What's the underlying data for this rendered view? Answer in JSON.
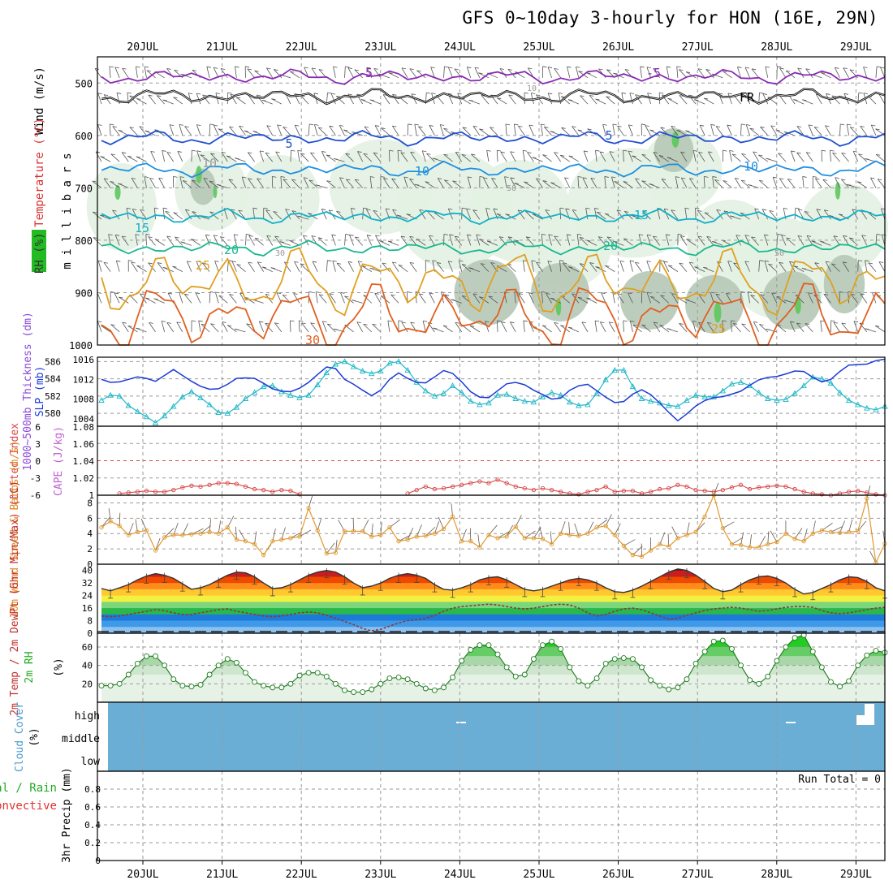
{
  "title": "GFS 0~10day 3-hourly for HON (16E, 29N)",
  "colors": {
    "frame": "#000000",
    "grid": "#9a9a9a",
    "temp_contours": {
      "m5": "#8a2ab4",
      "fr": "#000000",
      "p5": "#1f4fd2",
      "p10": "#1f8fe0",
      "p15": "#10b0c8",
      "p20": "#18b890",
      "p25": "#e0a020",
      "p30": "#e06020"
    },
    "rh_fill_light": "#e4f1e4",
    "rh_fill_mid": "#b6c8b6",
    "rh_fill_green": "#5cc85c",
    "slp": "#1a3ad8",
    "thickness": "#20b8c8",
    "lifted_index": "#d84848",
    "wind10m": "#e09a30",
    "temp_bands": [
      "#8b0000",
      "#c81e1e",
      "#ee4a00",
      "#ff8c1a",
      "#ffc830",
      "#f4f040",
      "#7cd67c",
      "#2ab84a",
      "#1e7ad8",
      "#3e9ae8",
      "#8cc0f0"
    ],
    "temp2m_line": "#333333",
    "dewpt_line": "#8a3a3a",
    "rh2m": "#1a7a1a",
    "rh2m_fill": [
      "#e6f2e6",
      "#cde6cd",
      "#a8d8a8",
      "#66cc66",
      "#22cc22"
    ],
    "cloud": "#6aaed6",
    "precip_total": "#22aa22",
    "precip_conv": "#e03030"
  },
  "chart_data": [
    {
      "panel": "pressure-time cross-section",
      "type": "heatmap",
      "ylabel": "m i l l i b a r s",
      "side_labels": [
        "Wind (m/s)",
        "Temperature (°C)",
        "RH (%)"
      ],
      "y_ticks": [
        500,
        600,
        700,
        800,
        900,
        1000
      ],
      "ylim": [
        1000,
        450
      ],
      "x_ticks_top": [
        "20JUL",
        "21JUL",
        "22JUL",
        "23JUL",
        "24JUL",
        "25JUL",
        "26JUL",
        "27JUL",
        "28JUL",
        "29JUL"
      ],
      "contour_labels": [
        "-5",
        "-5",
        "FR",
        "5",
        "5",
        "10",
        "10",
        "10",
        "15",
        "15",
        "20",
        "20",
        "25",
        "25",
        "30",
        "50",
        "50",
        "30",
        "10"
      ],
      "temperature_levels": [
        {
          "label": "-5",
          "mb": 488
        },
        {
          "label": "FR",
          "mb": 525
        },
        {
          "label": "5",
          "mb": 605
        },
        {
          "label": "10",
          "mb": 665
        },
        {
          "label": "15",
          "mb": 755
        },
        {
          "label": "20",
          "mb": 815
        },
        {
          "label": "25",
          "mb": 880
        },
        {
          "label": "30",
          "mb": 945
        }
      ]
    },
    {
      "panel": "SLP and 1000-500mb thickness",
      "type": "line",
      "ylabel_left": "1000~500mb Thickness (dm)",
      "ylabel_right": "SLP (mb)",
      "y_ticks_thickness": [
        580,
        582,
        584,
        586
      ],
      "y_ticks_slp": [
        1004,
        1008,
        1012,
        1016
      ],
      "series": [
        {
          "name": "SLP (mb)",
          "ylim": [
            1002.5,
            1016.5
          ],
          "values": [
            1012,
            1011.4,
            1011.5,
            1012,
            1012.5,
            1012.2,
            1011.6,
            1012.8,
            1014,
            1012.8,
            1011.6,
            1010.6,
            1010,
            1010.1,
            1011,
            1012.2,
            1012.3,
            1012.2,
            1011.2,
            1010.1,
            1009.6,
            1009.5,
            1010.2,
            1011.4,
            1013,
            1014.5,
            1014.2,
            1012,
            1011,
            1009.8,
            1008.7,
            1009.8,
            1012,
            1013.3,
            1012.2,
            1011.4,
            1011.3,
            1012.5,
            1013.8,
            1013.2,
            1011.5,
            1009.5,
            1008.4,
            1008.3,
            1009.7,
            1011.1,
            1011.4,
            1010.9,
            1009.8,
            1008.9,
            1008,
            1008.2,
            1009.8,
            1010.7,
            1011,
            1009.7,
            1008.4,
            1007.3,
            1007.5,
            1009,
            1009.9,
            1008.9,
            1007.2,
            1005.3,
            1003.6,
            1005,
            1006.6,
            1007.7,
            1008.3,
            1008.5,
            1009,
            1009.6,
            1010.8,
            1011.9,
            1012.4,
            1012.6,
            1013.1,
            1013.7,
            1013.6,
            1012.4,
            1011.5,
            1012,
            1013.6,
            1014.9,
            1015,
            1015.1,
            1015.8,
            1016.1
          ]
        },
        {
          "name": "1000-500mb Thickness (dm)",
          "ylim": [
            578.5,
            586.5
          ],
          "values": [
            581.5,
            582.1,
            582,
            580.9,
            580.2,
            579.6,
            578.9,
            579.7,
            580.8,
            581.9,
            582.5,
            581.8,
            581,
            580.1,
            580,
            580.7,
            581.7,
            582.4,
            583.1,
            583.2,
            582.5,
            582.1,
            581.8,
            582.1,
            583.3,
            584.7,
            585.7,
            586,
            585.4,
            584.9,
            584.6,
            584.9,
            585.8,
            586,
            585,
            583.6,
            582.6,
            582,
            582.3,
            583.2,
            582.4,
            581.4,
            581,
            581.2,
            582.1,
            582.2,
            581.7,
            581.4,
            581.3,
            581.9,
            582.4,
            582.1,
            581.3,
            580.9,
            581,
            582.3,
            583.9,
            585,
            585,
            583.1,
            581.7,
            581.4,
            581.2,
            580.9,
            580.8,
            581.5,
            582.1,
            581.9,
            581.9,
            582.6,
            583.4,
            583.6,
            583.2,
            582.4,
            581.7,
            581.5,
            581.6,
            582.3,
            583.2,
            584.2,
            584,
            583.5,
            582.4,
            581.5,
            581,
            580.6,
            580.4,
            580.8
          ]
        }
      ]
    },
    {
      "panel": "Lifted Index and CAPE",
      "type": "line",
      "ylabel_left": "Lifted Index",
      "ylabel_right": "CAPE (J/kg)",
      "y_ticks_li": [
        "-6",
        "-3",
        "0",
        "3",
        "6"
      ],
      "y_ticks_cape": [
        "1",
        "1.02",
        "1.04",
        "1.06",
        "1.08"
      ],
      "reference_line": 1.04,
      "series": [
        {
          "name": "Lifted Index",
          "ylim": [
            1.0,
            1.08
          ],
          "values": [
            null,
            null,
            1.002,
            1.003,
            1.004,
            1.005,
            1.004,
            1.004,
            1.006,
            1.009,
            1.011,
            1.01,
            1.012,
            1.014,
            1.014,
            1.013,
            1.01,
            1.007,
            1.006,
            1.004,
            1.006,
            1.005,
            1.001,
            null,
            null,
            null,
            null,
            null,
            null,
            null,
            null,
            null,
            null,
            null,
            1.002,
            1.006,
            1.01,
            1.007,
            1.008,
            1.01,
            1.012,
            1.014,
            1.016,
            1.014,
            1.018,
            1.014,
            1.01,
            1.008,
            1.006,
            1.008,
            1.006,
            1.004,
            1.002,
            1.001,
            1.004,
            1.006,
            1.01,
            1.004,
            1.005,
            1.005,
            1.002,
            1.004,
            1.007,
            1.008,
            1.012,
            1.01,
            1.006,
            1.005,
            1.004,
            1.006,
            1.009,
            1.012,
            1.007,
            1.009,
            1.01,
            1.011,
            1.01,
            1.007,
            1.004,
            1.002,
            1.001,
            1.0,
            1.002,
            1.004,
            1.005,
            1.003,
            1.001,
            1.0
          ]
        }
      ]
    },
    {
      "panel": "10m Wind Speed & Barbs",
      "type": "line",
      "ylabel": "10m Wind Speed & Barbs (m/s)",
      "y_ticks": [
        0,
        2,
        4,
        6,
        8
      ],
      "ylim": [
        0,
        9
      ],
      "series": [
        {
          "name": "10m Wind Speed (m/s)",
          "values": [
            4.8,
            5.6,
            5,
            3.8,
            4.2,
            4.4,
            1.8,
            3.5,
            3.8,
            3.8,
            3.9,
            4,
            4.2,
            4,
            4.8,
            3.2,
            3,
            2.6,
            1.2,
            3,
            3.2,
            3.4,
            3.6,
            7.3,
            4.4,
            1.4,
            1.5,
            4.3,
            4.3,
            4.3,
            3.6,
            3.8,
            4.8,
            3,
            3.2,
            3.6,
            3.7,
            4,
            4.6,
            6.2,
            3,
            3,
            2.2,
            3.8,
            3.4,
            3.6,
            4.9,
            3.4,
            3.4,
            3.3,
            2.6,
            4,
            3.8,
            3.7,
            4,
            4.8,
            5,
            3.8,
            2.4,
            1.2,
            1,
            1.8,
            2.6,
            2.3,
            3.4,
            3.8,
            4.2,
            6.2,
            9,
            4.7,
            2.6,
            2.5,
            2.2,
            2.2,
            2.6,
            2.9,
            4,
            3.3,
            3,
            4,
            4.4,
            4.2,
            4.1,
            4.2,
            4.3,
            8.6,
            0.2,
            2.7
          ]
        }
      ]
    },
    {
      "panel": "2m Temp and DewPt",
      "type": "area",
      "ylabel": "2m Temp / 2m DewPt (6hr Min/Max) (°C)",
      "y_ticks": [
        "0",
        "8",
        "16",
        "24",
        "32",
        "40"
      ],
      "ylim": [
        0,
        44
      ],
      "series": [
        {
          "name": "2m Temp",
          "values": [
            28.5,
            27,
            29,
            31,
            34,
            36.5,
            38,
            37,
            35,
            31.5,
            28,
            29,
            31,
            34,
            37,
            39,
            38.5,
            36,
            32,
            28.5,
            29,
            31,
            34,
            37,
            39,
            40,
            39,
            36,
            32,
            29,
            30,
            32,
            35,
            37,
            38,
            37,
            35,
            31,
            28,
            27.5,
            29,
            31,
            34,
            35.5,
            36,
            34,
            31,
            28,
            27,
            28,
            30,
            32,
            34,
            35,
            34,
            32,
            29,
            26.5,
            26,
            27.5,
            30,
            33,
            36,
            39,
            41,
            40,
            37,
            33,
            28.5,
            26.5,
            27.5,
            31,
            34,
            36,
            36.5,
            35,
            32,
            28,
            25,
            26,
            28.5,
            31,
            34,
            36,
            35.5,
            33,
            29,
            27
          ]
        },
        {
          "name": "2m DewPt",
          "values": [
            11,
            10.5,
            11,
            12,
            13,
            14,
            15,
            14.5,
            13,
            12,
            12,
            13,
            14,
            15,
            15.5,
            14,
            13,
            12,
            11,
            10.5,
            11,
            12,
            13,
            13.5,
            13,
            11.5,
            9.5,
            7.5,
            5.5,
            3,
            1.5,
            2.5,
            4.5,
            6.5,
            8,
            8.5,
            9.5,
            11.5,
            14,
            16,
            17,
            17.5,
            18,
            18.5,
            18,
            17,
            16,
            15.5,
            16,
            17,
            18,
            18.5,
            18,
            16,
            13,
            11,
            12,
            14,
            15.5,
            16,
            15,
            13,
            11,
            9,
            9.5,
            11.5,
            13,
            14.5,
            15.5,
            16,
            16.5,
            16,
            15,
            14,
            14.5,
            15.5,
            16.5,
            17,
            17,
            16.5,
            14.5,
            13,
            12.5,
            13,
            14,
            15,
            16,
            16.5
          ]
        }
      ]
    },
    {
      "panel": "2m RH",
      "type": "area",
      "ylabel": "2m RH (%)",
      "y_ticks": [
        20,
        40,
        60
      ],
      "ylim": [
        0,
        75
      ],
      "series": [
        {
          "name": "2m RH (%)",
          "values": [
            18,
            18,
            20,
            30,
            42,
            50,
            50,
            40,
            25,
            18,
            17,
            19,
            30,
            40,
            47,
            43,
            32,
            22,
            18,
            16,
            16,
            20,
            29,
            32,
            32,
            28,
            20,
            13,
            11,
            11,
            14,
            20,
            26,
            27,
            25,
            20,
            15,
            13,
            16,
            27,
            45,
            57,
            62,
            62,
            52,
            38,
            28,
            30,
            47,
            62,
            66,
            58,
            38,
            23,
            18,
            26,
            42,
            47,
            48,
            47,
            38,
            24,
            18,
            14,
            16,
            25,
            42,
            55,
            66,
            67,
            58,
            40,
            24,
            20,
            28,
            45,
            60,
            70,
            73,
            55,
            38,
            22,
            17,
            23,
            40,
            51,
            56,
            54
          ]
        }
      ]
    },
    {
      "panel": "Cloud Cover",
      "type": "heatmap",
      "ylabel": "Cloud Cover (%)",
      "y_ticks": [
        "high",
        "middle",
        "low"
      ],
      "summary": "overcast at all levels for the full period except brief high-level gaps"
    },
    {
      "panel": "3hr Precip",
      "type": "bar",
      "ylabel": "3hr Precip (mm)",
      "side_labels": [
        "Total / Rain",
        "Convective"
      ],
      "y_ticks": [
        "0",
        "0.2",
        "0.4",
        "0.6",
        "0.8"
      ],
      "ylim": [
        0,
        1
      ],
      "values": [],
      "annotation": "Run Total = 0"
    }
  ],
  "x_ticks_bottom": [
    "20JUL",
    "21JUL",
    "22JUL",
    "23JUL",
    "24JUL",
    "25JUL",
    "26JUL",
    "27JUL",
    "28JUL",
    "29JUL"
  ]
}
